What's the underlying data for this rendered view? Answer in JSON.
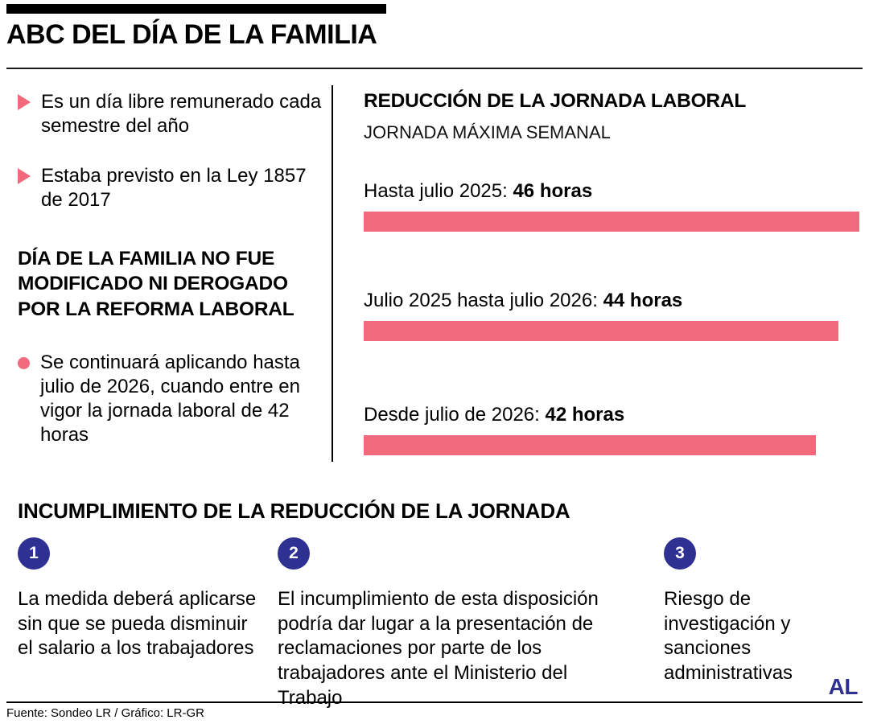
{
  "header": {
    "title": "ABC DEL DÍA DE LA FAMILIA"
  },
  "colors": {
    "pink": "#F0697C",
    "blue": "#2E3192",
    "black": "#000000"
  },
  "left_column": {
    "bullets": [
      {
        "text": "Es un día libre remunerado cada semestre del año"
      },
      {
        "text": "Estaba previsto en la Ley 1857 de 2017"
      }
    ],
    "heading": "DÍA DE LA FAMILIA NO FUE MODIFICADO NI DEROGADO POR LA REFORMA LABORAL",
    "note": "Se continuará aplicando hasta julio de 2026, cuando entre en vigor la jornada laboral de 42 horas"
  },
  "chart": {
    "title": "REDUCCIÓN DE LA JORNADA LABORAL",
    "subtitle": "JORNADA MÁXIMA SEMANAL",
    "items": [
      {
        "label": "Hasta julio 2025:",
        "value_label": "46 horas",
        "width_pct": 100
      },
      {
        "label": "Julio 2025 hasta julio 2026:",
        "value_label": "44 horas",
        "width_pct": 95.7
      },
      {
        "label": "Desde julio de 2026:",
        "value_label": "42 horas",
        "width_pct": 91.3
      }
    ]
  },
  "chart_data": {
    "type": "bar",
    "orientation": "horizontal",
    "title": "REDUCCIÓN DE LA JORNADA LABORAL",
    "subtitle": "JORNADA MÁXIMA SEMANAL",
    "categories": [
      "Hasta julio 2025",
      "Julio 2025 hasta julio 2026",
      "Desde julio de 2026"
    ],
    "values": [
      46,
      44,
      42
    ],
    "unit": "horas",
    "bar_color": "#F0697C",
    "xlim": [
      0,
      46
    ],
    "grid": false,
    "legend": false
  },
  "bottom": {
    "heading": "INCUMPLIMIENTO DE LA REDUCCIÓN DE LA JORNADA",
    "steps": [
      {
        "number": "1",
        "text": "La medida deberá aplicarse sin que se pueda disminuir el salario a los trabajadores"
      },
      {
        "number": "2",
        "text": "El incumplimiento de esta disposición podría dar lugar a la presentación de reclamaciones por parte de los trabajadores ante el Ministerio del Trabajo"
      },
      {
        "number": "3",
        "text": "Riesgo de investigación y sanciones administrativas"
      }
    ]
  },
  "footer": {
    "source": "Fuente: Sondeo LR / Gráfico: LR-GR",
    "logo": "AL"
  }
}
